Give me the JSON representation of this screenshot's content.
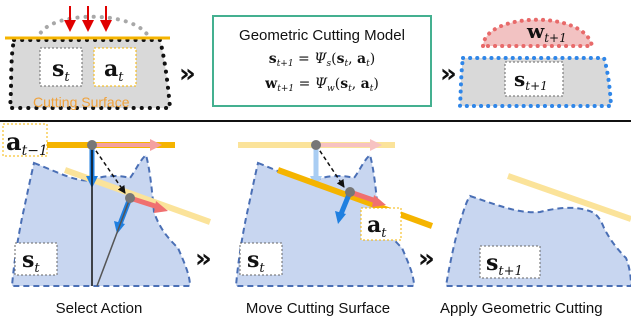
{
  "top": {
    "state_label": {
      "base": "s",
      "sub": "t"
    },
    "action_label": {
      "base": "a",
      "sub": "t"
    },
    "cutting_surface_label": "Cutting Surface",
    "model_title": "Geometric Cutting Model",
    "eq_state": {
      "lhs_base": "s",
      "lhs_sub": "t+1",
      "fn_base": "Ψ",
      "fn_sub": "s",
      "arg1_base": "s",
      "arg1_sub": "t",
      "arg2_base": "a",
      "arg2_sub": "t"
    },
    "eq_waste": {
      "lhs_base": "w",
      "lhs_sub": "t+1",
      "fn_base": "Ψ",
      "fn_sub": "w",
      "arg1_base": "s",
      "arg1_sub": "t",
      "arg2_base": "a",
      "arg2_sub": "t"
    },
    "waste_label": {
      "base": "w",
      "sub": "t+1"
    },
    "next_state_label": {
      "base": "s",
      "sub": "t+1"
    },
    "arrow_glyph": "»"
  },
  "bottom": {
    "prev_action_label": {
      "base": "a",
      "sub": "t−1"
    },
    "state_label_1": {
      "base": "s",
      "sub": "t"
    },
    "state_label_2": {
      "base": "s",
      "sub": "t"
    },
    "action_label": {
      "base": "a",
      "sub": "t"
    },
    "next_state_label": {
      "base": "s",
      "sub": "t+1"
    },
    "captions": [
      "Select Action",
      "Move Cutting Surface",
      "Apply Geometric Cutting"
    ],
    "arrow_glyph": "»"
  },
  "colors": {
    "solid_fill": "#d9d9d9",
    "shape_fill": "#c8d6f0",
    "shape_stroke": "#4a6fb5",
    "surface_orange": "#f5b400",
    "surface_faded": "#fbe39a",
    "model_box_border": "#44b090",
    "waste_fill": "#f2c2c2",
    "waste_dots": "#e86a6a",
    "next_dots": "#2f86e8",
    "arrow_blue": "#1f7fe0",
    "arrow_red": "#f07070",
    "caption_orange": "#f0a23c"
  }
}
